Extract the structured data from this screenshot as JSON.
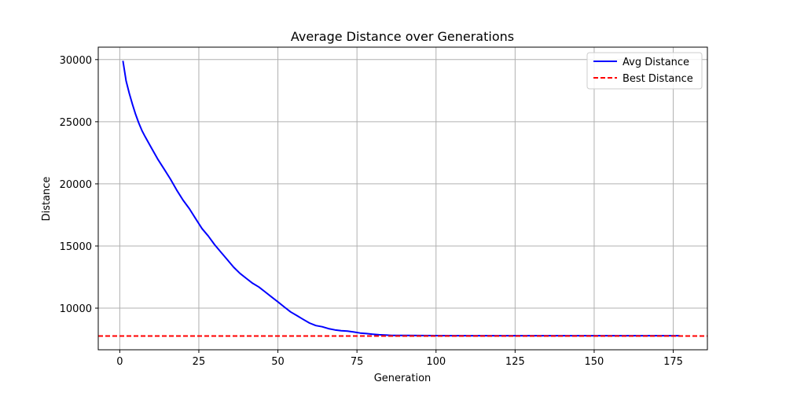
{
  "chart_data": {
    "type": "line",
    "title": "Average Distance over Generations",
    "xlabel": "Generation",
    "ylabel": "Distance",
    "xlim": [
      -6.8,
      185.8
    ],
    "ylim": [
      6650,
      31000
    ],
    "xticks": [
      0,
      25,
      50,
      75,
      100,
      125,
      150,
      175
    ],
    "yticks": [
      10000,
      15000,
      20000,
      25000,
      30000
    ],
    "grid": true,
    "legend_position": "top-right",
    "series": [
      {
        "name": "Avg Distance",
        "color": "#0000ff",
        "style": "solid",
        "x": [
          1,
          2,
          3,
          4,
          5,
          6,
          7,
          8,
          10,
          12,
          14,
          16,
          18,
          20,
          22,
          24,
          26,
          28,
          30,
          32,
          34,
          36,
          38,
          40,
          42,
          44,
          46,
          48,
          50,
          52,
          54,
          56,
          58,
          60,
          62,
          64,
          66,
          68,
          70,
          72,
          74,
          76,
          78,
          80,
          82,
          84,
          86,
          90,
          100,
          110,
          120,
          130,
          140,
          150,
          160,
          170,
          177
        ],
        "y": [
          29900,
          28300,
          27300,
          26400,
          25600,
          24900,
          24300,
          23800,
          22900,
          22000,
          21200,
          20400,
          19500,
          18700,
          18000,
          17200,
          16400,
          15800,
          15100,
          14500,
          13900,
          13300,
          12800,
          12400,
          12000,
          11700,
          11300,
          10900,
          10500,
          10100,
          9700,
          9400,
          9100,
          8800,
          8600,
          8500,
          8350,
          8250,
          8180,
          8150,
          8080,
          8000,
          7950,
          7900,
          7860,
          7830,
          7810,
          7800,
          7790,
          7780,
          7780,
          7780,
          7780,
          7780,
          7780,
          7780,
          7780
        ]
      },
      {
        "name": "Best Distance",
        "color": "#ff0000",
        "style": "dashed",
        "y_constant": 7760
      }
    ]
  }
}
